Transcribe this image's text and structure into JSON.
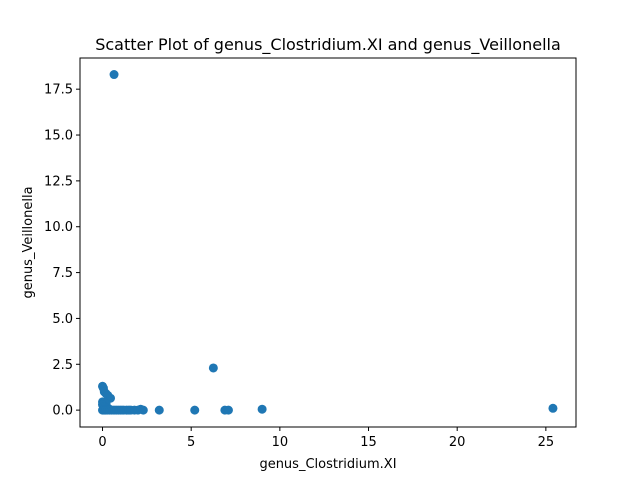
{
  "chart_data": {
    "type": "scatter",
    "title": "Scatter Plot of genus_Clostridium.XI and genus_Veillonella",
    "xlabel": "genus_Clostridium.XI",
    "ylabel": "genus_Veillonella",
    "xlim": [
      -1.27,
      26.7
    ],
    "ylim": [
      -0.92,
      19.2
    ],
    "xticks": [
      0,
      5,
      10,
      15,
      20,
      25
    ],
    "xtick_labels": [
      "0",
      "5",
      "10",
      "15",
      "20",
      "25"
    ],
    "yticks": [
      0.0,
      2.5,
      5.0,
      7.5,
      10.0,
      12.5,
      15.0,
      17.5
    ],
    "ytick_labels": [
      "0.0",
      "2.5",
      "5.0",
      "7.5",
      "10.0",
      "12.5",
      "15.0",
      "17.5"
    ],
    "grid": false,
    "marker_color": "#1f77b4",
    "series": [
      {
        "x": [
          0.65,
          6.25,
          9.0,
          25.4,
          0.0,
          0.05,
          0.1,
          0.2,
          0.3,
          0.45,
          0.0,
          0.1,
          0.2,
          0.0,
          0.05,
          0.15,
          0.25,
          0.35,
          0.0,
          0.05,
          0.1,
          0.15,
          0.2,
          0.3,
          0.4,
          0.5,
          0.6,
          0.7,
          0.8,
          0.9,
          1.0,
          1.1,
          1.2,
          1.35,
          1.5,
          1.6,
          1.8,
          2.0,
          2.15,
          2.3,
          3.2,
          5.2,
          6.9,
          7.1
        ],
        "y": [
          18.3,
          2.3,
          0.05,
          0.1,
          1.3,
          1.2,
          1.0,
          0.9,
          0.8,
          0.65,
          0.45,
          0.4,
          0.35,
          0.3,
          0.2,
          0.15,
          0.1,
          0.08,
          0.0,
          0.0,
          0.0,
          0.0,
          0.0,
          0.0,
          0.0,
          0.0,
          0.0,
          0.0,
          0.0,
          0.0,
          0.0,
          0.0,
          0.0,
          0.0,
          0.0,
          0.0,
          0.0,
          0.0,
          0.05,
          0.0,
          0.0,
          0.0,
          0.0,
          0.0
        ]
      }
    ]
  }
}
